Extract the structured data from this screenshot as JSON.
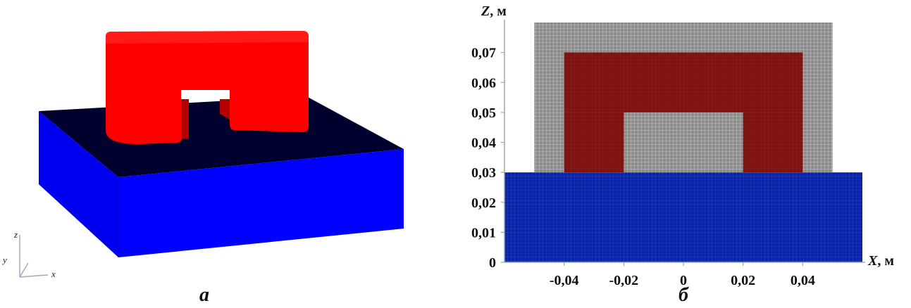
{
  "left_panel": {
    "caption": "а",
    "axes_triad": {
      "z": "z",
      "y": "y",
      "x": "x"
    },
    "colors": {
      "base_side": "#0000ff",
      "base_top": "#00002e",
      "yoke": "#ff0000",
      "yoke_dark": "#d80000",
      "window": "#ffffff"
    }
  },
  "right_panel": {
    "caption": "б",
    "x_axis_title": {
      "var": "X",
      "unit": "м"
    },
    "z_axis_title": {
      "var": "Z",
      "unit": "м"
    },
    "x_ticks": [
      "-0,04",
      "-0,02",
      "0",
      "0,02",
      "0,04"
    ],
    "z_ticks": [
      "0",
      "0,01",
      "0,02",
      "0,03",
      "0,04",
      "0,05",
      "0,06",
      "0,07"
    ],
    "colors": {
      "base": "#0a24a8",
      "mesh": "#8c8c8c",
      "core": "#7f1310",
      "grid_line": "#bcbcbc"
    }
  },
  "chart_data": {
    "type": "heatmap",
    "x_range": [
      -0.06,
      0.06
    ],
    "z_range": [
      0,
      0.08
    ],
    "regions": [
      {
        "x": [
          -0.06,
          0.06
        ],
        "z": [
          0,
          0.03
        ]
      },
      {
        "x": [
          -0.05,
          0.05
        ],
        "z": [
          0.03,
          0.08
        ]
      },
      {
        "x": [
          -0.04,
          0.04
        ],
        "z": [
          0.05,
          0.07
        ]
      },
      {
        "x": [
          -0.04,
          -0.02
        ],
        "z": [
          0.03,
          0.05
        ]
      },
      {
        "x": [
          0.02,
          0.04
        ],
        "z": [
          0.03,
          0.05
        ]
      }
    ]
  }
}
